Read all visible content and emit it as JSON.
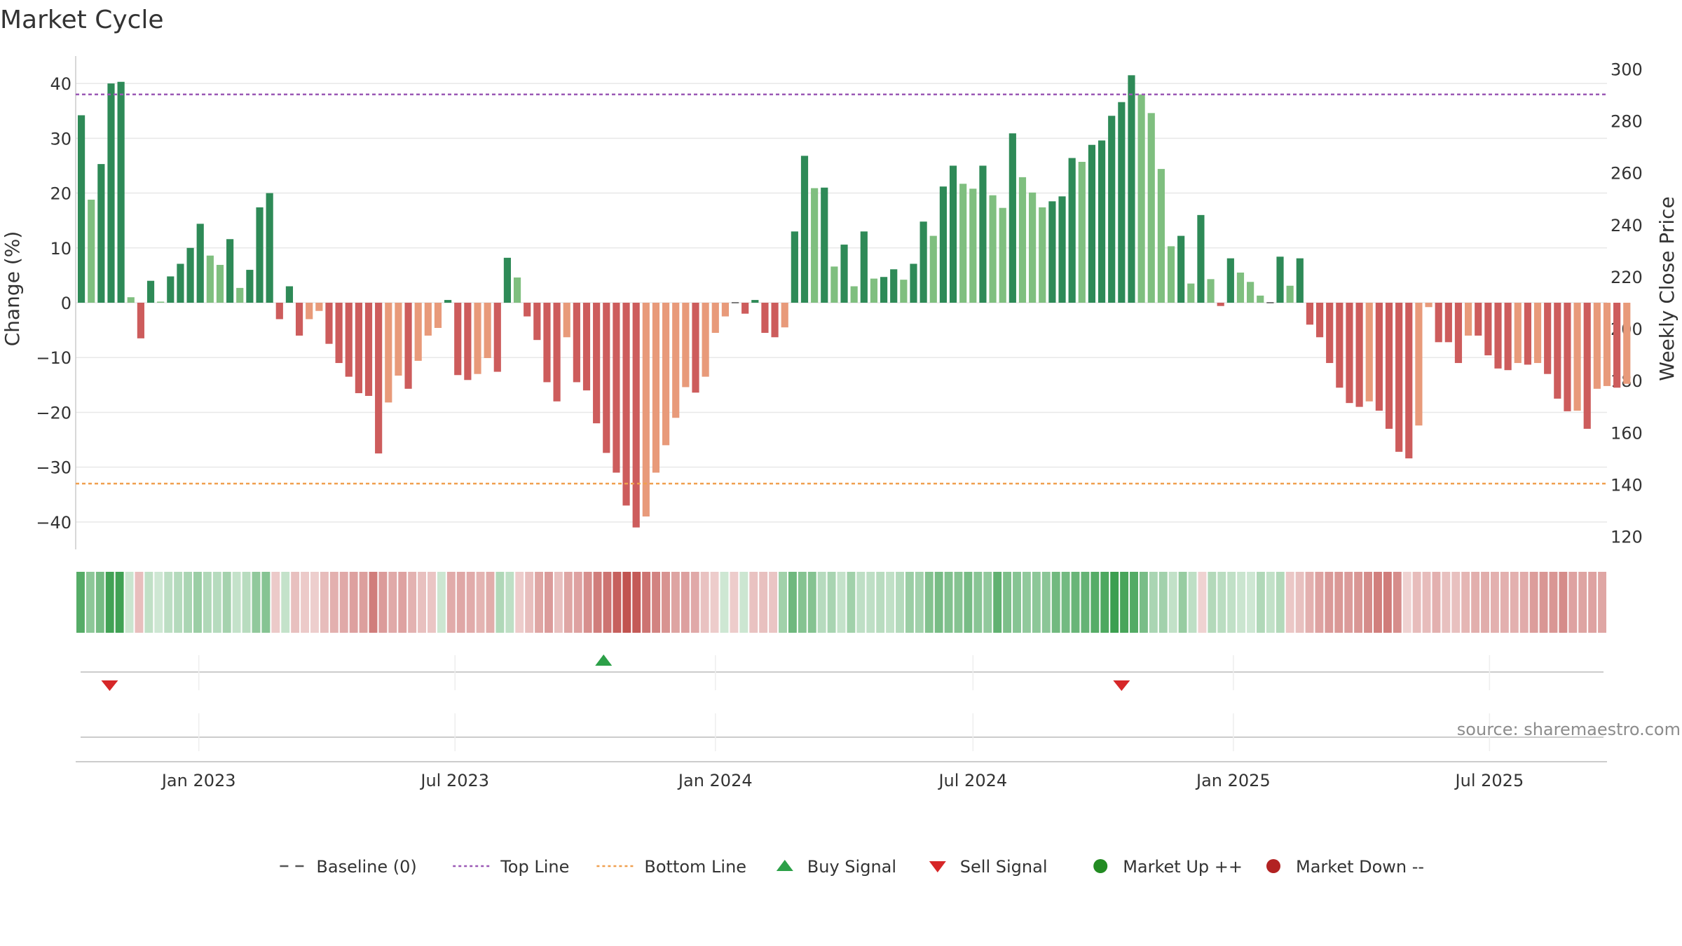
{
  "chart_data": {
    "type": "bar",
    "title": "Market Cycle",
    "ylabel": "Change (%)",
    "y2label": "Weekly Close Price",
    "ylim": [
      -45,
      45
    ],
    "y2lim": [
      115,
      305
    ],
    "yticks": [
      40,
      30,
      20,
      10,
      0,
      -10,
      -20,
      -30,
      -40
    ],
    "ytick_labels": [
      "40",
      "30",
      "20",
      "10",
      "0",
      "−10",
      "−20",
      "−30",
      "−40"
    ],
    "y2ticks": [
      300,
      280,
      260,
      240,
      220,
      200,
      180,
      160,
      140,
      120
    ],
    "xlim": [
      "2022-10-06",
      "2025-09-22"
    ],
    "xticks": [
      {
        "date": "2023-01-01",
        "label": "Jan 2023"
      },
      {
        "date": "2023-07-01",
        "label": "Jul 2023"
      },
      {
        "date": "2024-01-01",
        "label": "Jan 2024"
      },
      {
        "date": "2024-07-01",
        "label": "Jul 2024"
      },
      {
        "date": "2025-01-01",
        "label": "Jan 2025"
      },
      {
        "date": "2025-07-01",
        "label": "Jul 2025"
      }
    ],
    "start_week": "2022-10-10",
    "top_line": 38,
    "bottom_line": -33,
    "baseline": 0,
    "values": [
      34.2,
      18.8,
      25.3,
      40,
      40.3,
      1,
      -6.5,
      4,
      0.2,
      4.8,
      7.1,
      10,
      14.4,
      8.6,
      6.9,
      11.6,
      2.7,
      6,
      17.4,
      20,
      -3,
      3,
      -6,
      -3,
      -1.5,
      -7.5,
      -11,
      -13.5,
      -16.5,
      -17,
      -27.5,
      -18.2,
      -13.3,
      -15.7,
      -10.6,
      -6,
      -4.6,
      0.5,
      -13.2,
      -14.1,
      -13,
      -10.1,
      -12.6,
      8.2,
      4.6,
      -2.5,
      -6.8,
      -14.5,
      -18,
      -6.3,
      -14.5,
      -16,
      -22,
      -27.4,
      -31,
      -37,
      -41,
      -39,
      -31,
      -26,
      -21,
      -15.4,
      -16.4,
      -13.5,
      -5.5,
      -2.5,
      0,
      -2,
      0.5,
      -5.5,
      -6.3,
      -4.5,
      13,
      26.8,
      20.9,
      21,
      6.6,
      10.6,
      3,
      13,
      4.4,
      4.7,
      6.1,
      4.2,
      7.1,
      14.8,
      12.2,
      21.2,
      25,
      21.7,
      20.8,
      25,
      19.6,
      17.3,
      30.9,
      22.9,
      20.1,
      17.4,
      18.5,
      19.4,
      26.4,
      25.7,
      28.8,
      29.6,
      34.1,
      36.6,
      41.5,
      38,
      34.6,
      24.4,
      10.3,
      12.2,
      3.5,
      16,
      4.3,
      -0.6,
      8.1,
      5.5,
      3.8,
      1.3,
      0,
      8.4,
      3.1,
      8.1,
      -4,
      -6.3,
      -11,
      -15.5,
      -18.3,
      -19,
      -18,
      -19.7,
      -23,
      -27.2,
      -28.4,
      -22.4,
      -0.8,
      -7.2,
      -7.2,
      -11,
      -6,
      -6,
      -9.6,
      -12,
      -12.3,
      -11,
      -11.3,
      -11,
      -13,
      -17.5,
      -19.8,
      -19.7,
      -23,
      -15.7,
      -15.2,
      -15.5,
      -14.8
    ],
    "up_colors": [
      "#2e8a57",
      "#7fbf7f"
    ],
    "down_colors": [
      "#cd5c5c",
      "#e89a7a"
    ],
    "heat_colors": {
      "pos": "#3a9e4e",
      "neg": "#c0504d"
    },
    "signals": [
      {
        "type": "sell",
        "date": "2022-10-30"
      },
      {
        "type": "buy",
        "date": "2023-10-14"
      },
      {
        "type": "sell",
        "date": "2024-10-14"
      }
    ],
    "signal_colors": {
      "buy": "#2ca048",
      "sell": "#d62728",
      "market_up": "#228b22",
      "market_down": "#b22222"
    },
    "source": "source: sharemaestro.com",
    "legend": [
      {
        "label": "Baseline (0)",
        "symbol": "dash",
        "color": "#555555"
      },
      {
        "label": "Top Line",
        "symbol": "dot",
        "color": "#9b59b6"
      },
      {
        "label": "Bottom Line",
        "symbol": "dot",
        "color": "#f0a050"
      },
      {
        "label": "Buy Signal",
        "symbol": "tri-up",
        "color": "#2ca048"
      },
      {
        "label": "Sell Signal",
        "symbol": "tri-down",
        "color": "#d62728"
      },
      {
        "label": "Market Up ++",
        "symbol": "circle",
        "color": "#228b22"
      },
      {
        "label": "Market Down --",
        "symbol": "circle",
        "color": "#b22222"
      }
    ]
  }
}
